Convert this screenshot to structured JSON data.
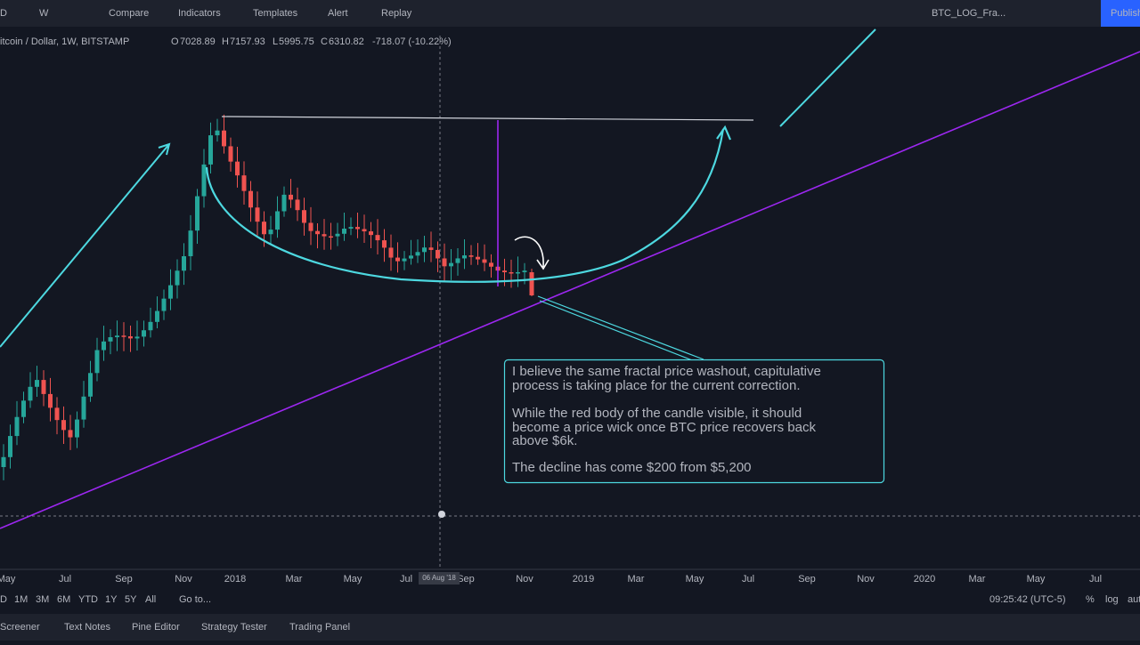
{
  "toolbar": {
    "items": [
      "D",
      "W",
      "Compare",
      "Indicators",
      "Templates",
      "Alert",
      "Replay"
    ],
    "layout": "BTC_LOG_Fra...",
    "publish": "Publish"
  },
  "legend": {
    "symbol": "itcoin / Dollar, 1W, BITSTAMP",
    "open_label": "O",
    "open": "7028.89",
    "high_label": "H",
    "high": "7157.93",
    "low_label": "L",
    "low": "5995.75",
    "close_label": "C",
    "close": "6310.82",
    "change": "-718.07 (-10.22%)"
  },
  "time_axis": {
    "labels": [
      "May",
      "Jul",
      "Sep",
      "Nov",
      "2018",
      "Mar",
      "May",
      "Jul",
      "Sep",
      "Nov",
      "2019",
      "Mar",
      "May",
      "Jul",
      "Sep",
      "Nov",
      "2020",
      "Mar",
      "May",
      "Jul"
    ],
    "cursor": "06 Aug '18"
  },
  "note": {
    "lines": [
      "I believe the same fractal price washout, capitulative",
      "process is taking place for the current correction.",
      "While the red body of the candle visible, it should",
      "become a price wick once BTC price recovers back",
      "above $6k.",
      "The decline has come $200 from $5,200"
    ]
  },
  "range_bar": {
    "items": [
      "D",
      "1M",
      "3M",
      "6M",
      "YTD",
      "1Y",
      "5Y",
      "All",
      "Go to..."
    ],
    "time": "09:25:42 (UTC-5)",
    "options": [
      "%",
      "log",
      "aut"
    ]
  },
  "bottom_tabs": [
    "Screener",
    "Text Notes",
    "Pine Editor",
    "Strategy Tester",
    "Trading Panel"
  ]
}
